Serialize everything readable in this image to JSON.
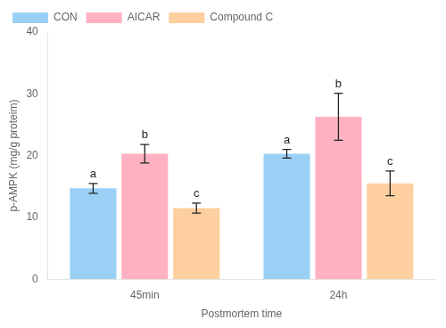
{
  "chart_data": {
    "type": "bar",
    "categories": [
      "45min",
      "24h"
    ],
    "series": [
      {
        "name": "CON",
        "values": [
          14.7,
          20.3
        ],
        "errors": [
          0.8,
          0.7
        ],
        "letters": [
          "a",
          "a"
        ]
      },
      {
        "name": "AICAR",
        "values": [
          20.3,
          26.3
        ],
        "errors": [
          1.5,
          3.8
        ],
        "letters": [
          "b",
          "b"
        ]
      },
      {
        "name": "Compound C",
        "values": [
          11.5,
          15.5
        ],
        "errors": [
          0.8,
          2.0
        ],
        "letters": [
          "c",
          "c"
        ]
      }
    ],
    "xlabel": "Postmortem time",
    "ylabel": "p-AMPK (mg/g proteim)",
    "ylim": [
      0,
      40
    ],
    "yticks": [
      0,
      10,
      20,
      30,
      40
    ],
    "grid": false,
    "legend": "upper left"
  }
}
